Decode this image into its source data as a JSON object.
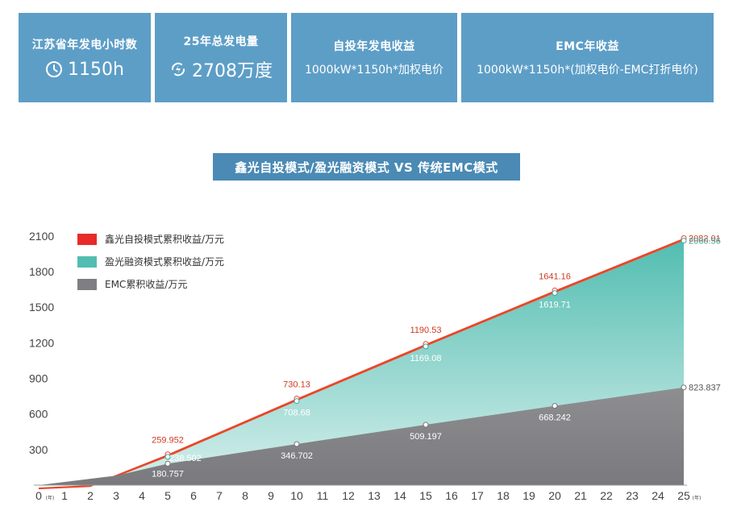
{
  "cards": [
    {
      "title": "江苏省年发电小时数",
      "value": "1150h",
      "icon": "clock-icon"
    },
    {
      "title": "25年总发电量",
      "value": "2708万度",
      "icon": "lightning-icon"
    },
    {
      "title": "自投年发电收益",
      "value": "1000kW*1150h*加权电价"
    },
    {
      "title": "EMC年收益",
      "value": "1000kW*1150h*(加权电价-EMC打折电价)"
    }
  ],
  "colors": {
    "card_bg": "#5d9ec7",
    "title_bg": "#4a8ab5",
    "series_red": "#e8472a",
    "series_teal": "#52bdb1",
    "series_gray": "#8c8c8f"
  },
  "chart_data": {
    "type": "area",
    "title": "鑫光自投模式/盈光融资模式 VS 传统EMC模式",
    "x_ticks": [
      0,
      1,
      2,
      3,
      4,
      5,
      6,
      7,
      8,
      9,
      10,
      11,
      12,
      13,
      14,
      15,
      16,
      17,
      18,
      19,
      20,
      21,
      22,
      23,
      24,
      25
    ],
    "x_unit": "(年)",
    "y_ticks": [
      300,
      600,
      900,
      1200,
      1500,
      1800,
      2100
    ],
    "ylim": [
      0,
      2200
    ],
    "legend_position": "top-left",
    "series": [
      {
        "name": "鑫光自投模式累积收益/万元",
        "color": "#e8472a",
        "points": [
          [
            0,
            -20
          ],
          [
            2,
            0
          ],
          [
            5,
            259.952
          ],
          [
            10,
            730.13
          ],
          [
            15,
            1190.53
          ],
          [
            20,
            1641.16
          ],
          [
            25,
            2082.01
          ]
        ],
        "labels": [
          {
            "x": 5,
            "y": 259.952,
            "text": "259.952"
          },
          {
            "x": 10,
            "y": 730.13,
            "text": "730.13"
          },
          {
            "x": 15,
            "y": 1190.53,
            "text": "1190.53"
          },
          {
            "x": 20,
            "y": 1641.16,
            "text": "1641.16"
          },
          {
            "x": 25,
            "y": 2082.01,
            "text": "2082.01"
          }
        ]
      },
      {
        "name": "盈光融资模式累积收益/万元",
        "color": "#52bdb1",
        "points": [
          [
            0,
            -35
          ],
          [
            2,
            -15
          ],
          [
            5,
            238.502
          ],
          [
            10,
            708.68
          ],
          [
            15,
            1169.08
          ],
          [
            20,
            1619.71
          ],
          [
            25,
            2060.56
          ]
        ],
        "labels": [
          {
            "x": 5,
            "y": 238.502,
            "text": "238.502"
          },
          {
            "x": 10,
            "y": 708.68,
            "text": "708.68"
          },
          {
            "x": 15,
            "y": 1169.08,
            "text": "1169.08"
          },
          {
            "x": 20,
            "y": 1619.71,
            "text": "1619.71"
          },
          {
            "x": 25,
            "y": 2060.56,
            "text": "2060.56"
          }
        ]
      },
      {
        "name": "EMC累积收益/万元",
        "color": "#8c8c8f",
        "points": [
          [
            0,
            0
          ],
          [
            3,
            80
          ],
          [
            5,
            180.757
          ],
          [
            10,
            346.702
          ],
          [
            15,
            509.197
          ],
          [
            20,
            668.242
          ],
          [
            25,
            823.837
          ]
        ],
        "labels": [
          {
            "x": 5,
            "y": 180.757,
            "text": "180.757"
          },
          {
            "x": 10,
            "y": 346.702,
            "text": "346.702"
          },
          {
            "x": 15,
            "y": 509.197,
            "text": "509.197"
          },
          {
            "x": 20,
            "y": 668.242,
            "text": "668.242"
          },
          {
            "x": 25,
            "y": 823.837,
            "text": "823.837"
          }
        ]
      }
    ]
  }
}
